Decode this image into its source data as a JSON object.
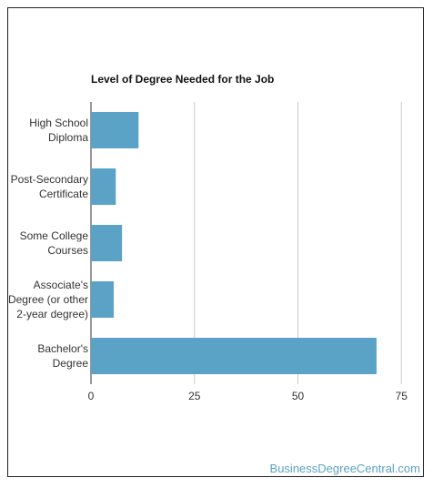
{
  "chart_data": {
    "type": "bar",
    "orientation": "horizontal",
    "title": "Level of Degree Needed for the Job",
    "categories": [
      [
        "High School",
        "Diploma"
      ],
      [
        "Post-Secondary",
        "Certificate"
      ],
      [
        "Some College",
        "Courses"
      ],
      [
        "Associate's",
        "Degree (or other",
        "2-year degree)"
      ],
      [
        "Bachelor's",
        "Degree"
      ]
    ],
    "values": [
      11.5,
      6,
      7.5,
      5.5,
      69
    ],
    "xlim": [
      0,
      80
    ],
    "xticks": [
      0,
      25,
      50,
      75
    ],
    "grid": true,
    "bar_color": "#5ba3c6"
  },
  "footer": {
    "source": "BusinessDegreeCentral.com"
  }
}
